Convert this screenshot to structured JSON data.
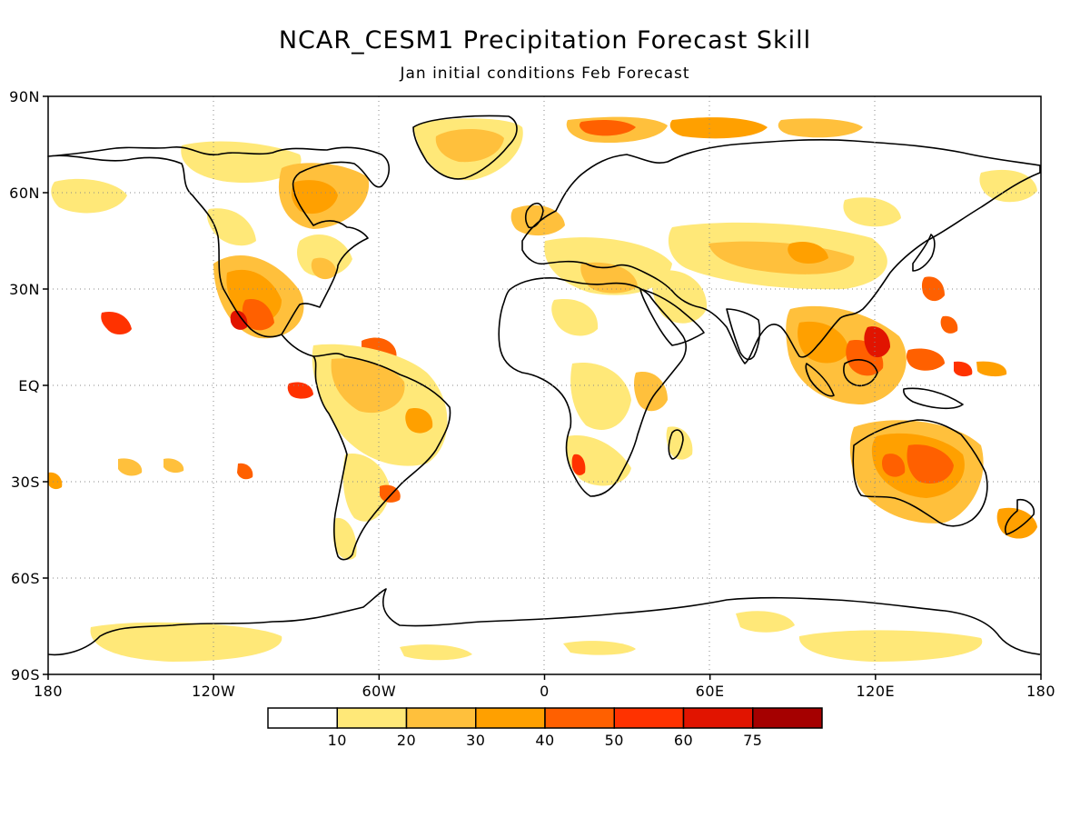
{
  "chart_data": {
    "type": "map",
    "title": "NCAR_CESM1 Precipitation Forecast Skill",
    "subtitle": "Jan initial conditions  Feb Forecast",
    "x_ticks": [
      "180",
      "120W",
      "60W",
      "0",
      "60E",
      "120E",
      "180"
    ],
    "y_ticks": [
      "90N",
      "60N",
      "30N",
      "EQ",
      "30S",
      "60S",
      "90S"
    ],
    "xlim": [
      -180,
      180
    ],
    "ylim": [
      -90,
      90
    ],
    "grid": true,
    "colorbar": {
      "bounds": [
        "10",
        "20",
        "30",
        "40",
        "50",
        "60",
        "75"
      ],
      "colors": [
        "#ffffff",
        "#ffe878",
        "#ffc03c",
        "#ffa000",
        "#ff6000",
        "#ff3200",
        "#e11400",
        "#a50000"
      ]
    }
  }
}
